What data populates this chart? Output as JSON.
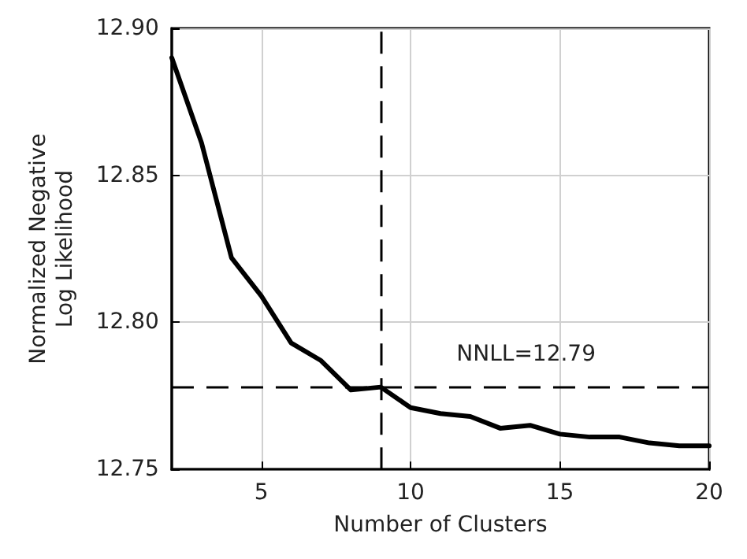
{
  "chart_data": {
    "type": "line",
    "xlabel": "Number of Clusters",
    "ylabel": "Normalized Negative\nLog Likelihood",
    "x": [
      2,
      3,
      4,
      5,
      6,
      7,
      8,
      9,
      10,
      11,
      12,
      13,
      14,
      15,
      16,
      17,
      18,
      19,
      20
    ],
    "series": [
      {
        "color": "#000000",
        "values": [
          12.89,
          12.861,
          12.822,
          12.809,
          12.793,
          12.787,
          12.777,
          12.778,
          12.771,
          12.769,
          12.768,
          12.764,
          12.765,
          12.762,
          12.761,
          12.761,
          12.759,
          12.758,
          12.758
        ]
      }
    ],
    "xlim": [
      2,
      20
    ],
    "xticks": [
      5,
      10,
      15,
      20
    ],
    "ylim": [
      12.75,
      12.9
    ],
    "yticks": [
      {
        "value": 12.75,
        "label": "12.75"
      },
      {
        "value": 12.8,
        "label": "12.80"
      },
      {
        "value": 12.85,
        "label": "12.85"
      },
      {
        "value": 12.9,
        "label": "12.90"
      }
    ],
    "ref_lines": [
      {
        "axis": "x",
        "value": 9,
        "line_style": "dashed",
        "color": "#000000"
      },
      {
        "axis": "y",
        "value": 12.778,
        "line_style": "dashed",
        "color": "#000000"
      }
    ],
    "annotations": [
      "NNLL=12.79"
    ],
    "grid": true,
    "marker": "none",
    "line_style": "solid"
  }
}
